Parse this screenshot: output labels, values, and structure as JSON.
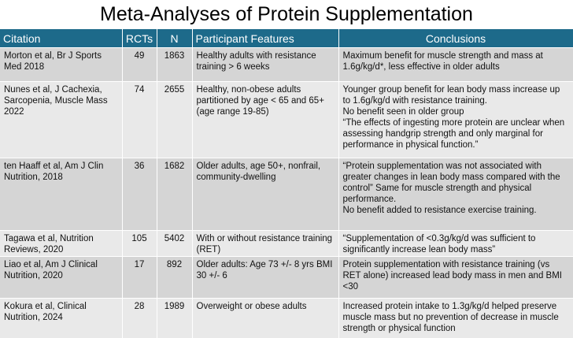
{
  "header": {
    "title": "Meta-Analyses of Protein Supplementation"
  },
  "table": {
    "columns": [
      "Citation",
      "RCTs",
      "N",
      "Participant Features",
      "Conclusions"
    ],
    "rows": [
      [
        "Morton et al, Br J Sports Med 2018",
        "49",
        "1863",
        "Healthy adults with resistance training  > 6 weeks",
        [
          "Maximum benefit for muscle strength and mass at 1.6g/kg/d*, less effective in older adults"
        ]
      ],
      [
        "Nunes et al, J Cachexia, Sarcopenia, Muscle Mass 2022",
        "74",
        "2655",
        "Healthy, non-obese adults partitioned by age < 65 and 65+ (age range 19-85)",
        [
          "Younger group benefit for lean body mass increase up to 1.6g/kg/d with resistance training.",
          "No benefit seen in older group",
          "“The effects of ingesting more protein are unclear when assessing handgrip strength and only marginal for performance in physical function.”"
        ]
      ],
      [
        "ten Haaff et al, Am J Clin Nutrition, 2018",
        "36",
        "1682",
        "Older adults, age 50+, nonfrail, community-dwelling",
        [
          "“Protein supplementation was not associated with greater changes in lean body mass compared with the control” Same for muscle strength and physical performance.",
          "No benefit added to resistance exercise training."
        ]
      ],
      [
        "Tagawa et al, Nutrition Reviews, 2020",
        "105",
        "5402",
        "With or without resistance training (RET)",
        [
          "“Supplementation of <0.3g/kg/d was sufficient to significantly increase lean body mass”"
        ]
      ],
      [
        "Liao et al, Am J Clinical Nutrition, 2020",
        "17",
        "892",
        "Older adults: Age 73 +/- 8 yrs BMI 30 +/- 6",
        [
          "Protein supplementation with resistance training (vs RET alone) increased lead body mass in men and BMI <30"
        ]
      ],
      [
        "Kokura et al, Clinical Nutrition, 2024",
        "28",
        "1989",
        "Overweight or obese adults",
        [
          "Increased protein intake to 1.3g/kg/d helped preserve muscle mass but no prevention of decrease in muscle strength or physical function"
        ]
      ]
    ]
  }
}
